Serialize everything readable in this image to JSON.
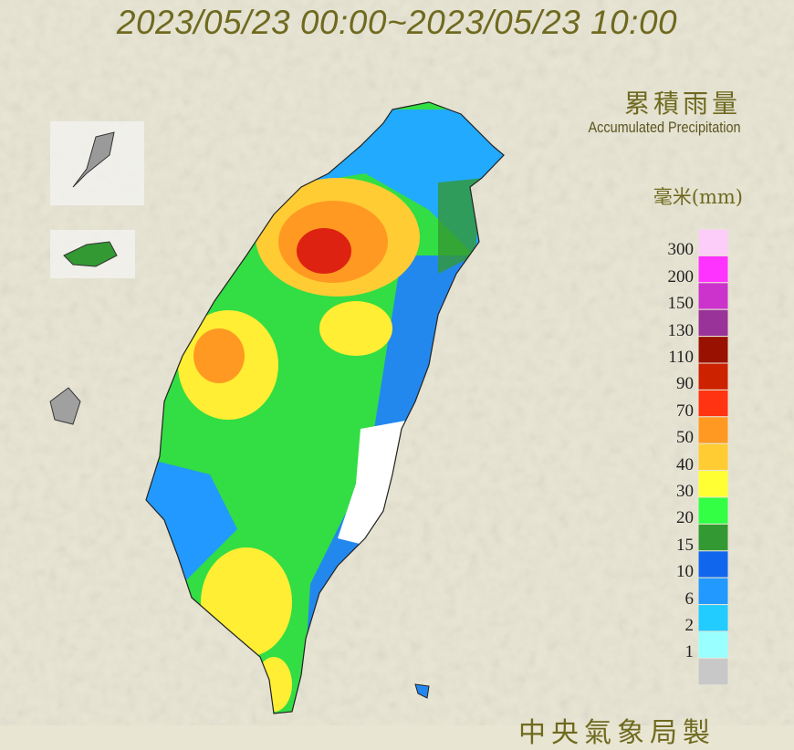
{
  "title": "2023/05/23 00:00~2023/05/23 10:00",
  "legend": {
    "title_zh": "累積雨量",
    "title_en": "Accumulated Precipitation",
    "unit": "毫米(mm)",
    "colors": [
      "#fccdf8",
      "#ff33ff",
      "#cc33cc",
      "#993399",
      "#991100",
      "#cc2200",
      "#ff3311",
      "#ff9922",
      "#ffcc33",
      "#ffff33",
      "#33ff44",
      "#339933",
      "#1166ee",
      "#2299ff",
      "#22ccff",
      "#99ffff",
      "#c8c8c8"
    ],
    "labels": [
      "300",
      "200",
      "150",
      "130",
      "110",
      "90",
      "70",
      "50",
      "40",
      "30",
      "20",
      "15",
      "10",
      "6",
      "2",
      "1"
    ]
  },
  "credit": "中央氣象局製"
}
